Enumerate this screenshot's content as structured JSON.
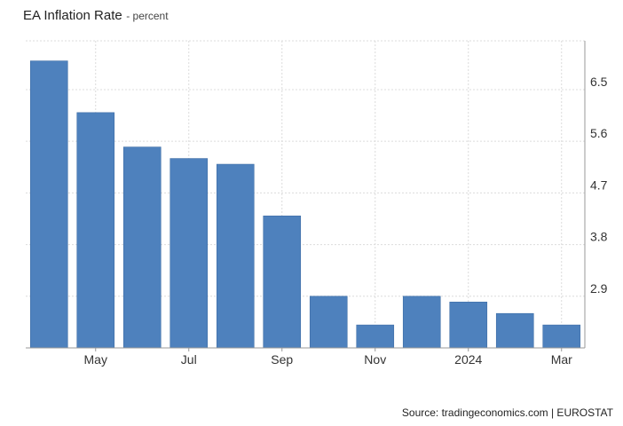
{
  "header": {
    "title": "EA Inflation Rate",
    "subtitle": "- percent"
  },
  "source": "Source: tradingeconomics.com | EUROSTAT",
  "colors": {
    "bar": "#4e81bd",
    "grid": "#dcdcdc",
    "axis": "#999999"
  },
  "chart_data": {
    "type": "bar",
    "categories": [
      "2023-04",
      "2023-05",
      "2023-06",
      "2023-07",
      "2023-08",
      "2023-09",
      "2023-10",
      "2023-11",
      "2023-12",
      "2024-01",
      "2024-02",
      "2024-03"
    ],
    "values": [
      7.0,
      6.1,
      5.5,
      5.3,
      5.2,
      4.3,
      2.9,
      2.4,
      2.9,
      2.8,
      2.6,
      2.4
    ],
    "x_tick_labels": [
      {
        "category": "2023-05",
        "label": "May"
      },
      {
        "category": "2023-07",
        "label": "Jul"
      },
      {
        "category": "2023-09",
        "label": "Sep"
      },
      {
        "category": "2023-11",
        "label": "Nov"
      },
      {
        "category": "2024-01",
        "label": "2024"
      },
      {
        "category": "2024-03",
        "label": "Mar"
      }
    ],
    "y_ticks": [
      2.9,
      3.8,
      4.7,
      5.6,
      6.5
    ],
    "ylim": [
      2.0,
      7.35
    ],
    "y_axis_side": "right",
    "grid": true,
    "legend": "none"
  }
}
